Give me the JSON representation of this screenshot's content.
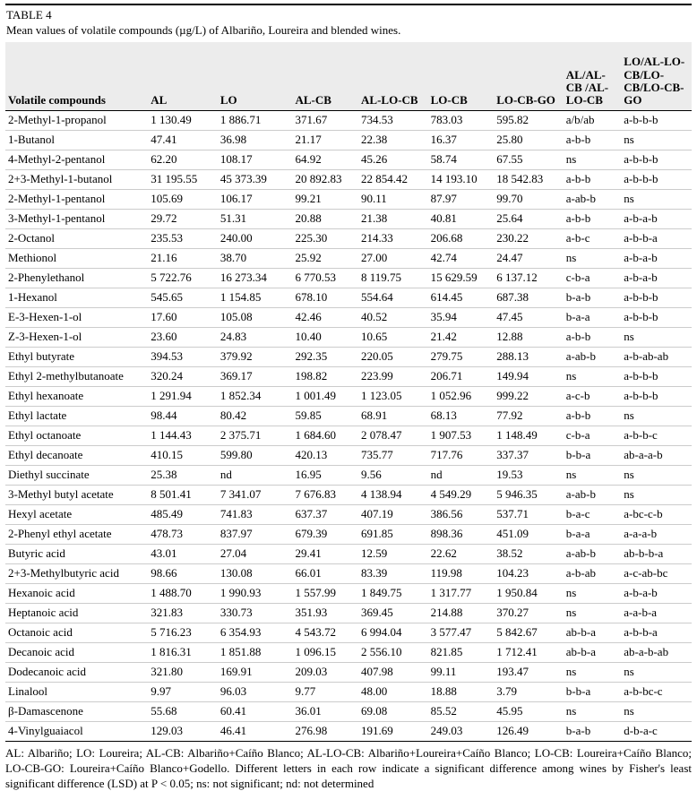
{
  "page": {
    "table_label": "TABLE 4",
    "caption": "Mean values of volatile compounds (µg/L) of Albariño, Loureira and blended wines.",
    "footnote": "AL: Albariño; LO: Loureira; AL-CB: Albariño+Caíño Blanco; AL-LO-CB: Albariño+Loureira+Caíño Blanco; LO-CB: Loureira+Caíño Blanco; LO-CB-GO: Loureira+Caíño Blanco+Godello. Different letters in each row indicate a significant difference among wines by Fisher's least significant difference (LSD) at P < 0.05; ns: not significant; nd: not determined"
  },
  "colors": {
    "header_bg": "#ececec",
    "row_rule": "#cccccc",
    "strong_rule": "#000000",
    "text": "#000000"
  },
  "table": {
    "columns": [
      "Volatile compounds",
      "AL",
      "LO",
      "AL-CB",
      "AL-LO-CB",
      "LO-CB",
      "LO-CB-GO",
      "AL/AL-CB /AL-LO-CB",
      "LO/AL-LO-CB/LO-CB/LO-CB-GO"
    ],
    "rows": [
      [
        "2-Methyl-1-propanol",
        "1 130.49",
        "1 886.71",
        "371.67",
        "734.53",
        "783.03",
        "595.82",
        "a/b/ab",
        "a-b-b-b"
      ],
      [
        "1-Butanol",
        "47.41",
        "36.98",
        "21.17",
        "22.38",
        "16.37",
        "25.80",
        "a-b-b",
        "ns"
      ],
      [
        "4-Methyl-2-pentanol",
        "62.20",
        "108.17",
        "64.92",
        "45.26",
        "58.74",
        "67.55",
        "ns",
        "a-b-b-b"
      ],
      [
        "2+3-Methyl-1-butanol",
        "31 195.55",
        "45 373.39",
        "20 892.83",
        "22 854.42",
        "14 193.10",
        "18 542.83",
        "a-b-b",
        "a-b-b-b"
      ],
      [
        "2-Methyl-1-pentanol",
        "105.69",
        "106.17",
        "99.21",
        "90.11",
        "87.97",
        "99.70",
        "a-ab-b",
        "ns"
      ],
      [
        "3-Methyl-1-pentanol",
        "29.72",
        "51.31",
        "20.88",
        "21.38",
        "40.81",
        "25.64",
        "a-b-b",
        "a-b-a-b"
      ],
      [
        "2-Octanol",
        "235.53",
        "240.00",
        "225.30",
        "214.33",
        "206.68",
        "230.22",
        "a-b-c",
        "a-b-b-a"
      ],
      [
        "Methionol",
        "21.16",
        "38.70",
        "25.92",
        "27.00",
        "42.74",
        "24.47",
        "ns",
        "a-b-a-b"
      ],
      [
        "2-Phenylethanol",
        "5 722.76",
        "16 273.34",
        "6 770.53",
        "8 119.75",
        "15 629.59",
        "6 137.12",
        "c-b-a",
        "a-b-a-b"
      ],
      [
        "1-Hexanol",
        "545.65",
        "1 154.85",
        "678.10",
        "554.64",
        "614.45",
        "687.38",
        "b-a-b",
        "a-b-b-b"
      ],
      [
        "E-3-Hexen-1-ol",
        "17.60",
        "105.08",
        "42.46",
        "40.52",
        "35.94",
        "47.45",
        "b-a-a",
        "a-b-b-b"
      ],
      [
        "Z-3-Hexen-1-ol",
        "23.60",
        "24.83",
        "10.40",
        "10.65",
        "21.42",
        "12.88",
        "a-b-b",
        "ns"
      ],
      [
        "Ethyl butyrate",
        "394.53",
        "379.92",
        "292.35",
        "220.05",
        "279.75",
        "288.13",
        "a-ab-b",
        "a-b-ab-ab"
      ],
      [
        "Ethyl 2-methylbutanoate",
        "320.24",
        "369.17",
        "198.82",
        "223.99",
        "206.71",
        "149.94",
        "ns",
        "a-b-b-b"
      ],
      [
        "Ethyl hexanoate",
        "1 291.94",
        "1 852.34",
        "1 001.49",
        "1 123.05",
        "1 052.96",
        "999.22",
        "a-c-b",
        "a-b-b-b"
      ],
      [
        "Ethyl lactate",
        "98.44",
        "80.42",
        "59.85",
        "68.91",
        "68.13",
        "77.92",
        "a-b-b",
        "ns"
      ],
      [
        "Ethyl octanoate",
        "1 144.43",
        "2 375.71",
        "1 684.60",
        "2 078.47",
        "1 907.53",
        "1 148.49",
        "c-b-a",
        "a-b-b-c"
      ],
      [
        "Ethyl decanoate",
        "410.15",
        "599.80",
        "420.13",
        "735.77",
        "717.76",
        "337.37",
        "b-b-a",
        "ab-a-a-b"
      ],
      [
        "Diethyl succinate",
        "25.38",
        "nd",
        "16.95",
        "9.56",
        "nd",
        "19.53",
        "ns",
        "ns"
      ],
      [
        "3-Methyl butyl acetate",
        "8 501.41",
        "7 341.07",
        "7 676.83",
        "4 138.94",
        "4 549.29",
        "5 946.35",
        "a-ab-b",
        "ns"
      ],
      [
        "Hexyl acetate",
        "485.49",
        "741.83",
        "637.37",
        "407.19",
        "386.56",
        "537.71",
        "b-a-c",
        "a-bc-c-b"
      ],
      [
        "2-Phenyl ethyl acetate",
        "478.73",
        "837.97",
        "679.39",
        "691.85",
        "898.36",
        "451.09",
        "b-a-a",
        "a-a-a-b"
      ],
      [
        "Butyric acid",
        "43.01",
        "27.04",
        "29.41",
        "12.59",
        "22.62",
        "38.52",
        "a-ab-b",
        "ab-b-b-a"
      ],
      [
        "2+3-Methylbutyric acid",
        "98.66",
        "130.08",
        "66.01",
        "83.39",
        "119.98",
        "104.23",
        "a-b-ab",
        "a-c-ab-bc"
      ],
      [
        "Hexanoic acid",
        "1 488.70",
        "1 990.93",
        "1 557.99",
        "1 849.75",
        "1 317.77",
        "1 950.84",
        "ns",
        "a-b-a-b"
      ],
      [
        "Heptanoic acid",
        "321.83",
        "330.73",
        "351.93",
        "369.45",
        "214.88",
        "370.27",
        "ns",
        "a-a-b-a"
      ],
      [
        "Octanoic acid",
        "5 716.23",
        "6 354.93",
        "4 543.72",
        "6 994.04",
        "3 577.47",
        "5 842.67",
        "ab-b-a",
        "a-b-b-a"
      ],
      [
        "Decanoic acid",
        "1 816.31",
        "1 851.88",
        "1 096.15",
        "2 556.10",
        "821.85",
        "1 712.41",
        "ab-b-a",
        "ab-a-b-ab"
      ],
      [
        "Dodecanoic acid",
        "321.80",
        "169.91",
        "209.03",
        "407.98",
        "99.11",
        "193.47",
        "ns",
        "ns"
      ],
      [
        "Linalool",
        "9.97",
        "96.03",
        "9.77",
        "48.00",
        "18.88",
        "3.79",
        "b-b-a",
        "a-b-bc-c"
      ],
      [
        "β-Damascenone",
        "55.68",
        "60.41",
        "36.01",
        "69.08",
        "85.52",
        "45.95",
        "ns",
        "ns"
      ],
      [
        "4-Vinylguaiacol",
        "129.03",
        "46.41",
        "276.98",
        "191.69",
        "249.03",
        "126.49",
        "b-a-b",
        "d-b-a-c"
      ]
    ]
  }
}
